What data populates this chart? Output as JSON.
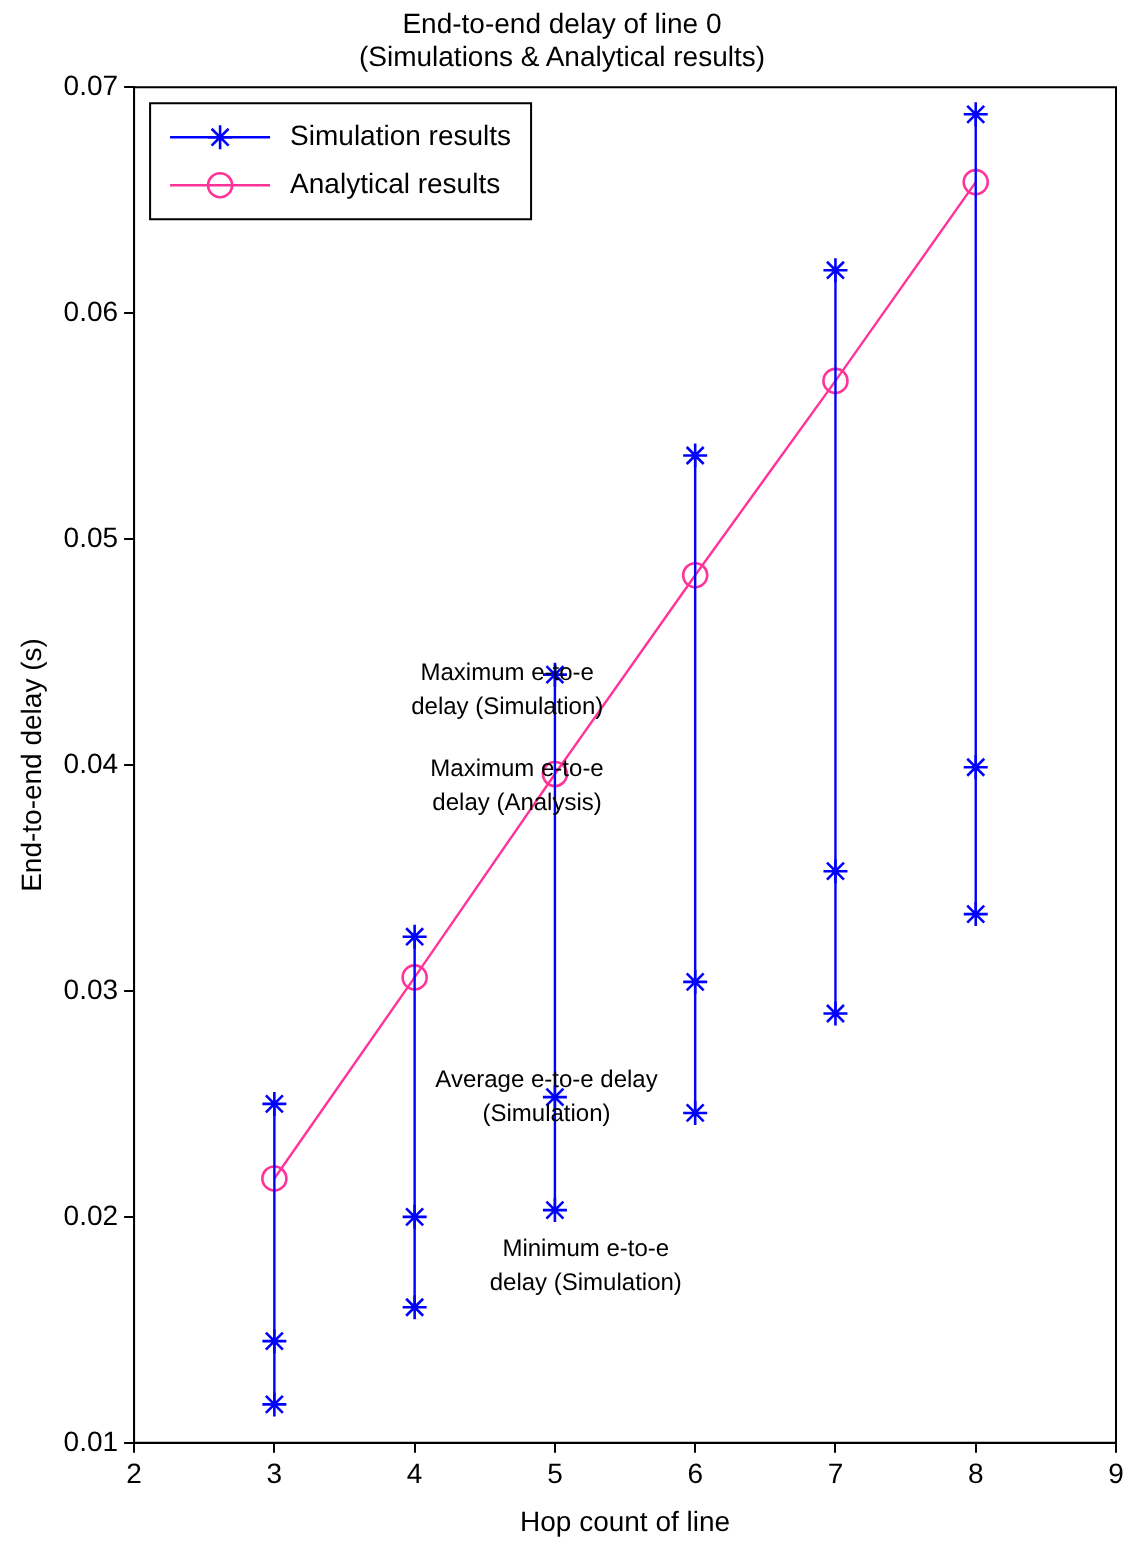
{
  "chart_data": {
    "type": "line",
    "title": "End-to-end delay of line 0",
    "subtitle": "(Simulations & Analytical results)",
    "xlabel": "Hop count of line",
    "ylabel": "End-to-end delay (s)",
    "xlim": [
      2,
      9
    ],
    "xticks": [
      2,
      3,
      4,
      5,
      6,
      7,
      8,
      9
    ],
    "ylim": [
      0.01,
      0.07
    ],
    "yticks": [
      0.01,
      0.02,
      0.03,
      0.04,
      0.05,
      0.06,
      0.07
    ],
    "grid": false,
    "legend": "top left",
    "marker": "cross",
    "series": [
      {
        "name": "Simulation results",
        "color": "#0000ff",
        "x": [
          3,
          3,
          3
        ],
        "values": [
          0.025,
          0.0145,
          0.0117
        ]
      },
      {
        "color": "#0000ff",
        "x": [
          4,
          4,
          4
        ],
        "values": [
          0.0324,
          0.02,
          0.016
        ]
      },
      {
        "color": "#0000ff",
        "x": [
          5,
          5,
          5
        ],
        "values": [
          0.044,
          0.0253,
          0.0203
        ]
      },
      {
        "color": "#0000ff",
        "x": [
          6,
          6,
          6
        ],
        "values": [
          0.0537,
          0.0304,
          0.0246
        ]
      },
      {
        "color": "#0000ff",
        "x": [
          7,
          7,
          7
        ],
        "values": [
          0.0619,
          0.0353,
          0.029
        ]
      },
      {
        "color": "#0000ff",
        "x": [
          8,
          8,
          8
        ],
        "values": [
          0.0688,
          0.0399,
          0.0334
        ]
      },
      {
        "name": "Analytical results",
        "color": "#ff3399",
        "marker": "circle",
        "x": [
          3,
          4,
          5,
          6,
          7,
          8
        ],
        "values": [
          0.0217,
          0.0306,
          0.0396,
          0.0484,
          0.057,
          0.0658
        ]
      }
    ],
    "annotations": [
      "Maximum e-to-e delay (Simulation)",
      "Maximum e-to-e delay (Analysis)",
      "Average e-to-e delay (Simulation)",
      "Minimum e-to-e delay (Simulation)"
    ]
  }
}
